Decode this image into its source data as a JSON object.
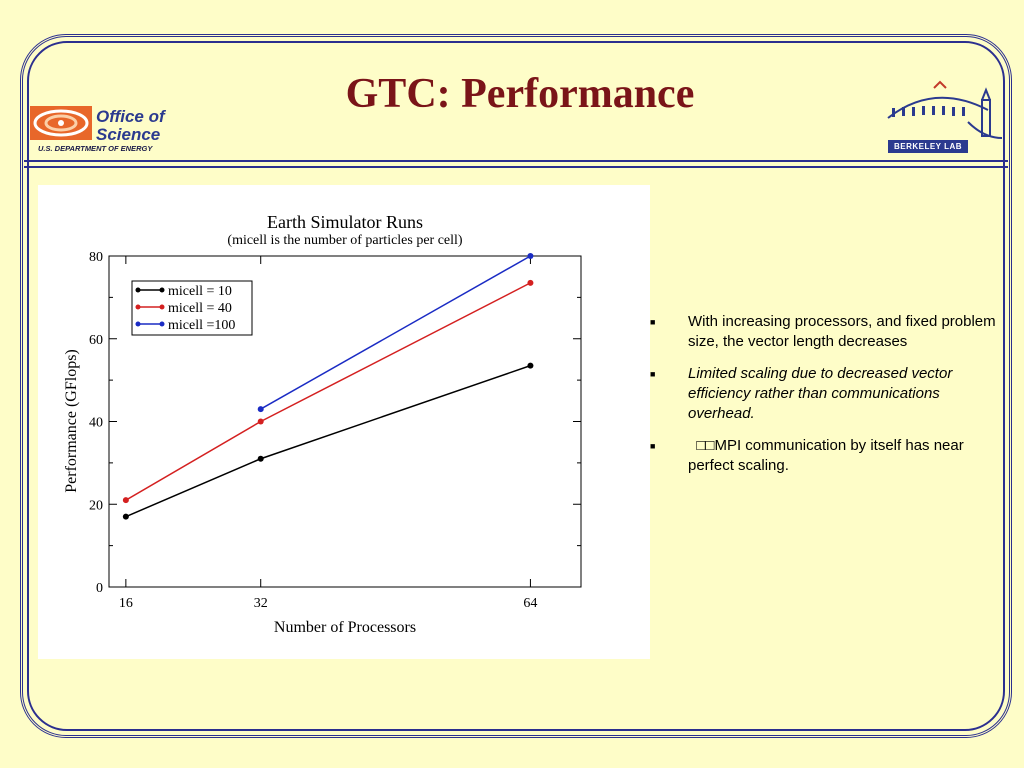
{
  "slide": {
    "title": "GTC: Performance"
  },
  "logos": {
    "left": {
      "line1": "Office of",
      "line2": "Science",
      "sub": "U.S. DEPARTMENT OF ENERGY"
    },
    "right": {
      "label": "BERKELEY LAB"
    }
  },
  "colors": {
    "frame": "#2b2f8f",
    "background": "#fefdc8",
    "title": "#7a1418"
  },
  "bullets": [
    {
      "text": "With increasing processors, and fixed problem size, the vector length decreases",
      "italic": false
    },
    {
      "text": "Limited scaling due to decreased vector efficiency  rather than communications overhead.",
      "italic": true
    },
    {
      "text": "  □□MPI communication by itself has near perfect scaling.",
      "italic": false
    }
  ],
  "chart_data": {
    "type": "line",
    "title": "Earth Simulator Runs",
    "subtitle": "(micell is the number of particles per cell)",
    "xlabel": "Number of Processors",
    "ylabel": "Performance (GFlops)",
    "x_ticks": [
      16,
      32,
      64
    ],
    "y_ticks": [
      0,
      20,
      40,
      60,
      80
    ],
    "xlim": [
      14,
      70
    ],
    "ylim": [
      0,
      80
    ],
    "legend_position": "top-left",
    "series": [
      {
        "name": "micell = 10",
        "color": "#000000",
        "x": [
          16,
          32,
          64
        ],
        "y": [
          17,
          31,
          53.5
        ]
      },
      {
        "name": "micell = 40",
        "color": "#d42020",
        "x": [
          16,
          32,
          64
        ],
        "y": [
          21,
          40,
          73.5
        ]
      },
      {
        "name": "micell =100",
        "color": "#1a2bc4",
        "x": [
          32,
          64
        ],
        "y": [
          43,
          80
        ]
      }
    ]
  }
}
